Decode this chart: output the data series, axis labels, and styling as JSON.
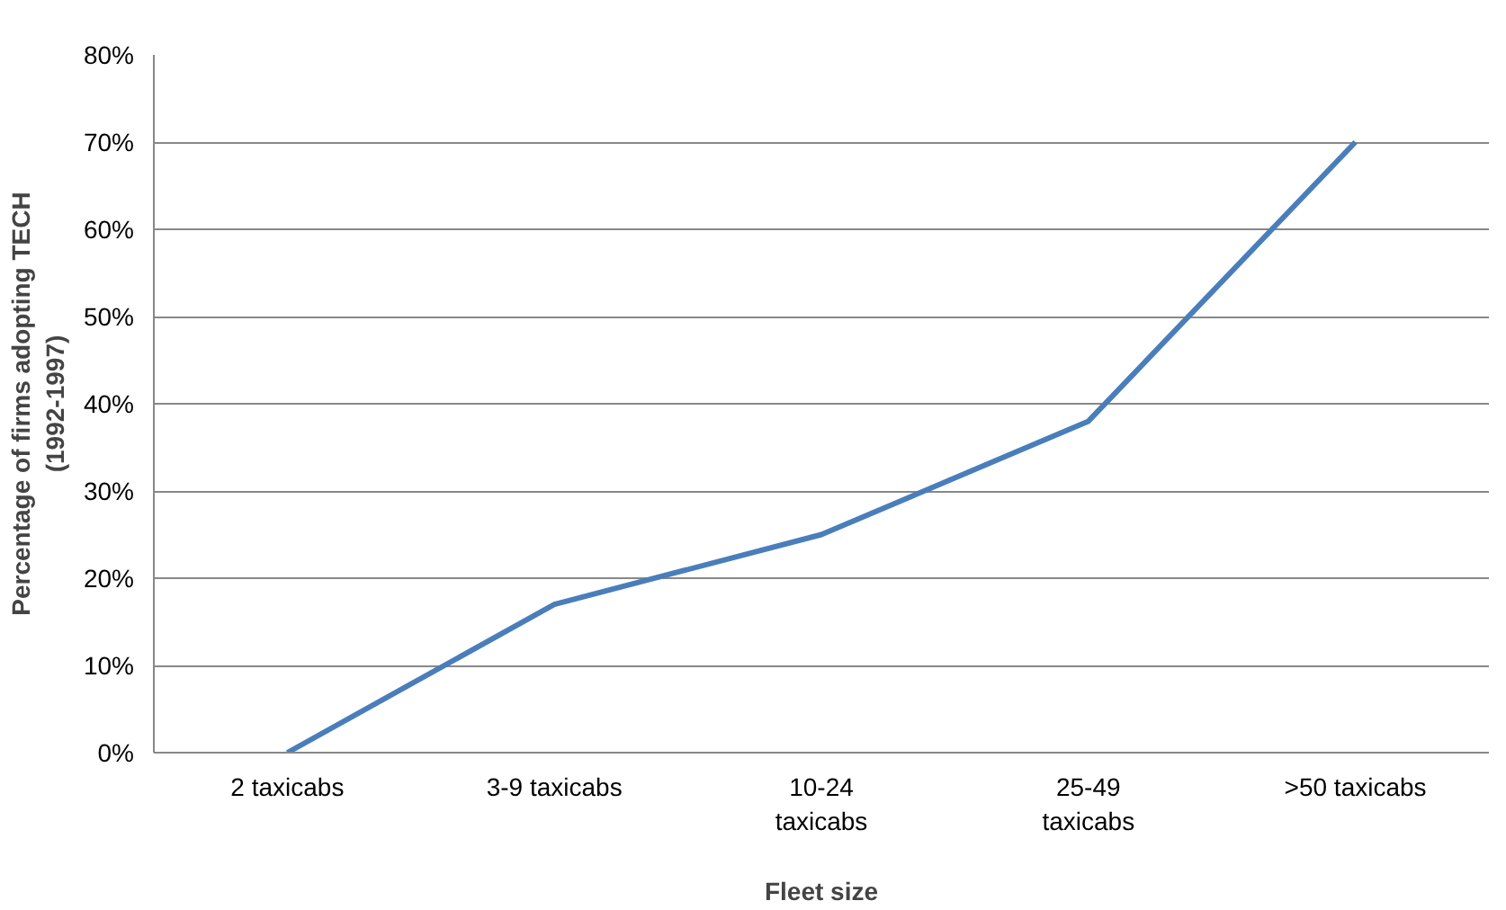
{
  "chart_data": {
    "type": "line",
    "xlabel": "Fleet size",
    "ylabel": "Percentage of firms adopting TECH (1992-1997)",
    "categories": [
      "2 taxicabs",
      "3-9 taxicabs",
      "10-24 taxicabs",
      "25-49 taxicabs",
      ">50 taxicabs"
    ],
    "series": [
      {
        "color": "#4a7ebb",
        "values": [
          0,
          17,
          25,
          38,
          70
        ]
      }
    ],
    "ylim": [
      0,
      80
    ],
    "yticks": [
      {
        "value": 0,
        "label": "0%"
      },
      {
        "value": 10,
        "label": "10%"
      },
      {
        "value": 20,
        "label": "20%"
      },
      {
        "value": 30,
        "label": "30%"
      },
      {
        "value": 40,
        "label": "40%"
      },
      {
        "value": 50,
        "label": "50%"
      },
      {
        "value": 60,
        "label": "60%"
      },
      {
        "value": 70,
        "label": "70%"
      },
      {
        "value": 80,
        "label": "80%"
      }
    ],
    "grid": "y",
    "line_style": "solid"
  }
}
